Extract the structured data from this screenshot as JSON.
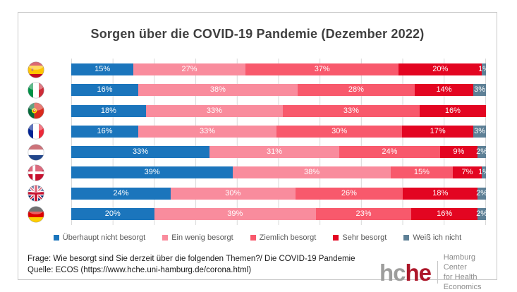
{
  "title": "Sorgen über die COVID-19 Pandemie (Dezember 2022)",
  "colors": {
    "not_worried": "#1B75BC",
    "little_worried": "#F98C9D",
    "quite_worried": "#F8596C",
    "very_worried": "#E30521",
    "dont_know": "#5E8096",
    "gridline": "#D9D9D9",
    "legend_text": "#595959",
    "logo_gray": "#9D9D9C",
    "logo_red": "#AC1629"
  },
  "chart_data": {
    "type": "bar",
    "stacked": true,
    "orientation": "horizontal",
    "title": "Sorgen über die COVID-19 Pandemie (Dezember 2022)",
    "value_format": "percent",
    "xlim": [
      0,
      100
    ],
    "grid": "vertical gridlines every 10%",
    "legend_position": "bottom",
    "categories": [
      "Spanien",
      "Italien",
      "Portugal",
      "Frankreich",
      "Niederlande",
      "Dänemark",
      "Großbritannien",
      "Deutschland"
    ],
    "category_flags": [
      "spain",
      "italy",
      "portugal",
      "france",
      "netherlands",
      "denmark",
      "uk",
      "germany"
    ],
    "series": [
      {
        "name": "Überhaupt nicht besorgt",
        "color": "#1B75BC",
        "values": [
          15,
          16,
          18,
          16,
          33,
          39,
          24,
          20
        ]
      },
      {
        "name": "Ein wenig besorgt",
        "color": "#F98C9D",
        "values": [
          27,
          38,
          33,
          33,
          31,
          38,
          30,
          39
        ]
      },
      {
        "name": "Ziemlich besorgt",
        "color": "#F8596C",
        "values": [
          37,
          28,
          33,
          30,
          24,
          15,
          26,
          23
        ]
      },
      {
        "name": "Sehr besorgt",
        "color": "#E30521",
        "values": [
          20,
          14,
          16,
          17,
          9,
          7,
          18,
          16
        ]
      },
      {
        "name": "Weiß ich nicht",
        "color": "#5E8096",
        "values": [
          1,
          3,
          0,
          3,
          2,
          1,
          2,
          2
        ]
      }
    ]
  },
  "footer": {
    "line1": "Frage: Wie besorgt sind Sie derzeit über die folgenden Themen?/ Die COVID-19 Pandemie",
    "line2": "Quelle: ECOS (https://www.hche.uni-hamburg.de/corona.html)"
  },
  "logo": {
    "gray_part": "hc",
    "red_part": "he",
    "tagline_line1": "Hamburg Center",
    "tagline_line2": "for Health Economics"
  }
}
